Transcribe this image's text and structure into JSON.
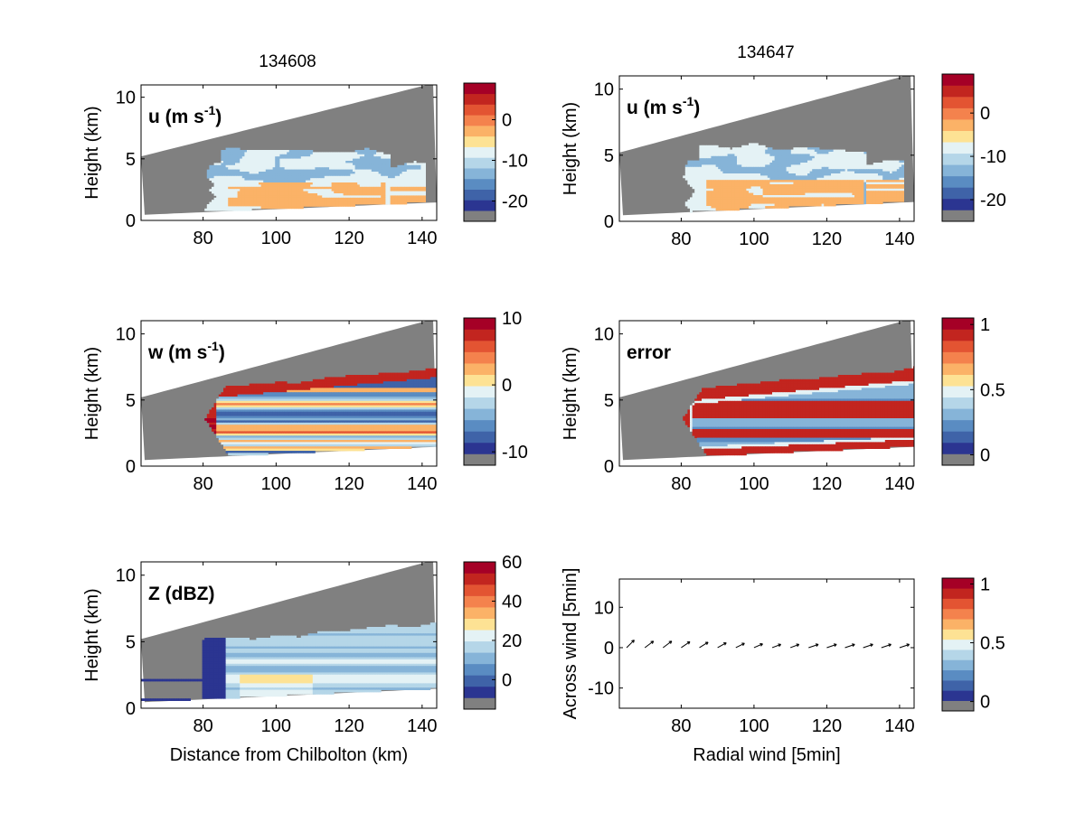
{
  "column_titles": [
    "134608",
    "134647"
  ],
  "colors": {
    "masked": "#808080",
    "palette": [
      "#2b3591",
      "#3f63a8",
      "#5a8cc2",
      "#86b4d8",
      "#b5d6e8",
      "#e4f2f5",
      "#fde294",
      "#fbb267",
      "#f4824d",
      "#e35432",
      "#c2251f",
      "#a50026"
    ]
  },
  "chart_data": [
    {
      "type": "heatmap",
      "title": "134608",
      "inset_label": "u (m s",
      "inset_label_sup": "-1",
      "inset_label_end": ")",
      "ylabel": "Height (km)",
      "xlabel": "",
      "xlim": [
        63,
        144
      ],
      "ylim": [
        0,
        11
      ],
      "xticks": [
        80,
        100,
        120,
        140
      ],
      "yticks": [
        0,
        5,
        10
      ],
      "colorbar": {
        "ticks": [
          "0",
          "-10",
          "-20"
        ],
        "tick_values": [
          0,
          -10,
          -20
        ],
        "range": [
          -25,
          9
        ]
      },
      "field": "u"
    },
    {
      "type": "heatmap",
      "title": "134647",
      "inset_label": "u (m s",
      "inset_label_sup": "-1",
      "inset_label_end": ")",
      "ylabel": "Height (km)",
      "xlabel": "",
      "xlim": [
        63,
        144
      ],
      "ylim": [
        0,
        11
      ],
      "xticks": [
        80,
        100,
        120,
        140
      ],
      "yticks": [
        0,
        5,
        10
      ],
      "colorbar": {
        "ticks": [
          "0",
          "-10",
          "-20"
        ],
        "tick_values": [
          0,
          -10,
          -20
        ],
        "range": [
          -25,
          9
        ]
      },
      "field": "u"
    },
    {
      "type": "heatmap",
      "title": "",
      "inset_label": "w (m s",
      "inset_label_sup": "-1",
      "inset_label_end": ")",
      "ylabel": "Height (km)",
      "xlabel": "",
      "xlim": [
        63,
        144
      ],
      "ylim": [
        0,
        11
      ],
      "xticks": [
        80,
        100,
        120,
        140
      ],
      "yticks": [
        0,
        5,
        10
      ],
      "colorbar": {
        "ticks": [
          "10",
          "0",
          "-10"
        ],
        "tick_values": [
          10,
          0,
          -10
        ],
        "range": [
          -12,
          10
        ]
      },
      "field": "w"
    },
    {
      "type": "heatmap",
      "title": "",
      "inset_label": "error",
      "inset_label_sup": "",
      "inset_label_end": "",
      "ylabel": "Height (km)",
      "xlabel": "",
      "xlim": [
        63,
        144
      ],
      "ylim": [
        0,
        11
      ],
      "xticks": [
        80,
        100,
        120,
        140
      ],
      "yticks": [
        0,
        5,
        10
      ],
      "colorbar": {
        "ticks": [
          "1",
          "0.5",
          "0"
        ],
        "tick_values": [
          1,
          0.5,
          0
        ],
        "range": [
          -0.08,
          1.05
        ]
      },
      "field": "error"
    },
    {
      "type": "heatmap",
      "title": "",
      "inset_label": "Z (dBZ)",
      "inset_label_sup": "",
      "inset_label_end": "",
      "ylabel": "Height (km)",
      "xlabel": "Distance from Chilbolton (km)",
      "xlim": [
        63,
        144
      ],
      "ylim": [
        0,
        11
      ],
      "xticks": [
        80,
        100,
        120,
        140
      ],
      "yticks": [
        0,
        5,
        10
      ],
      "colorbar": {
        "ticks": [
          "60",
          "40",
          "20",
          "0"
        ],
        "tick_values": [
          60,
          40,
          20,
          0
        ],
        "range": [
          -15,
          60
        ]
      },
      "field": "Z"
    },
    {
      "type": "scatter",
      "title": "",
      "inset_label": "",
      "ylabel": "Across wind [5min]",
      "xlabel": "Radial wind [5min]",
      "xlim": [
        63,
        144
      ],
      "ylim": [
        -15,
        17
      ],
      "xticks": [
        80,
        100,
        120,
        140
      ],
      "yticks": [
        10,
        0,
        -10
      ],
      "colorbar": {
        "ticks": [
          "1",
          "0.5",
          "0"
        ],
        "tick_values": [
          1,
          0.5,
          0
        ],
        "range": [
          -0.08,
          1.05
        ]
      },
      "arrows": {
        "x": [
          65,
          70,
          75,
          80,
          85,
          90,
          95,
          100,
          105,
          110,
          115,
          120,
          125,
          130,
          135,
          140
        ],
        "y": [
          0,
          0,
          0,
          0,
          0,
          0,
          0,
          0,
          0,
          0,
          0,
          0,
          0,
          0,
          0,
          0
        ],
        "dx": [
          1.4,
          1.6,
          1.6,
          1.6,
          1.6,
          1.6,
          1.6,
          1.6,
          1.6,
          1.6,
          1.8,
          1.8,
          1.8,
          1.8,
          1.8,
          1.8
        ],
        "dy": [
          1.4,
          1.2,
          1.2,
          1.1,
          1.0,
          0.9,
          0.8,
          0.7,
          0.6,
          0.6,
          0.6,
          0.6,
          0.6,
          0.6,
          0.6,
          0.6
        ]
      }
    }
  ]
}
